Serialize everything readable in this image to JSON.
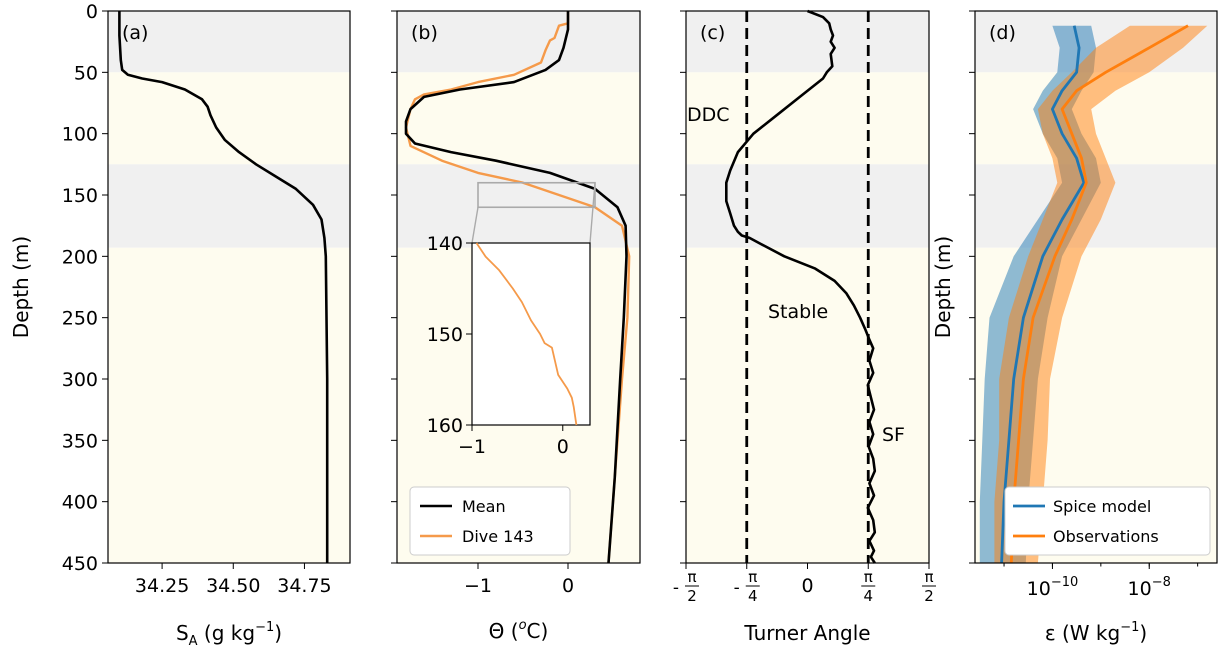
{
  "figure": {
    "colors": {
      "band_grey": "#f0f0f0",
      "band_cream": "#fefcef",
      "black": "#000000",
      "orange": "#ff7f0e",
      "orange_light": "#f59a4a",
      "blue": "#1f77b4"
    }
  },
  "chart_data": [
    {
      "panel": "(a)",
      "type": "line",
      "xlabel": "S",
      "xlabel_sub": "A",
      "xlabel_unit": " (g kg",
      "xlabel_exp": "−1",
      "xlabel_close": ")",
      "ylabel": "Depth (m)",
      "ylim": [
        0,
        450
      ],
      "yticks": [
        "0",
        "50",
        "100",
        "150",
        "200",
        "250",
        "300",
        "350",
        "400",
        "450"
      ],
      "xlim": [
        34.06,
        34.91
      ],
      "xticks": [
        "34.25",
        "34.50",
        "34.75"
      ],
      "series": [
        {
          "x": [
            34.1,
            34.1,
            34.105,
            34.11,
            34.13,
            34.18,
            34.25,
            34.33,
            34.39,
            34.41,
            34.42,
            34.44,
            34.47,
            34.52,
            34.58,
            34.65,
            34.72,
            34.78,
            34.81,
            34.82,
            34.825,
            34.83,
            34.83
          ],
          "y": [
            0,
            20,
            40,
            48,
            52,
            55,
            58,
            64,
            72,
            78,
            85,
            95,
            105,
            115,
            125,
            135,
            145,
            158,
            170,
            185,
            200,
            300,
            450
          ]
        }
      ]
    },
    {
      "panel": "(b)",
      "type": "line",
      "xlabel": "Θ (",
      "xlabel_sup": "o",
      "xlabel_unit": "C)",
      "ylim": [
        0,
        450
      ],
      "xlim": [
        -1.9,
        0.8
      ],
      "xticks": [
        "−1",
        "0"
      ],
      "legend": "bottom-left",
      "series": [
        {
          "name": "Mean",
          "x": [
            0.0,
            0.0,
            -0.05,
            -0.1,
            -0.25,
            -0.6,
            -1.2,
            -1.6,
            -1.75,
            -1.8,
            -1.8,
            -1.7,
            -1.3,
            -0.8,
            -0.2,
            0.3,
            0.55,
            0.64,
            0.65,
            0.62,
            0.58,
            0.52,
            0.45
          ],
          "y": [
            0,
            15,
            30,
            40,
            48,
            58,
            64,
            70,
            80,
            90,
            100,
            108,
            115,
            122,
            132,
            145,
            160,
            175,
            200,
            250,
            300,
            380,
            450
          ]
        },
        {
          "name": "Dive 143",
          "x": [
            0.0,
            0.0,
            -0.1,
            -0.15,
            -0.2,
            -0.25,
            -0.3,
            -0.6,
            -1.0,
            -1.3,
            -1.6,
            -1.7,
            -1.75,
            -1.8,
            -1.75,
            -1.4,
            -1.0,
            -0.5,
            -0.1,
            0.3,
            0.6,
            0.68,
            0.66,
            0.6,
            0.52,
            0.45
          ],
          "y": [
            0,
            10,
            12,
            22,
            24,
            32,
            42,
            52,
            58,
            64,
            68,
            72,
            80,
            95,
            110,
            122,
            132,
            140,
            150,
            160,
            175,
            200,
            250,
            300,
            380,
            450
          ]
        }
      ],
      "inset": {
        "ylim": [
          140,
          160
        ],
        "yticks": [
          "140",
          "150",
          "160"
        ],
        "xlim": [
          -1.0,
          0.3
        ],
        "xticks": [
          "−1",
          "0"
        ],
        "series": [
          {
            "x": [
              -0.95,
              -0.85,
              -0.7,
              -0.55,
              -0.45,
              -0.35,
              -0.25,
              -0.2,
              -0.12,
              -0.05,
              0.05,
              0.1,
              0.12,
              0.15
            ],
            "y": [
              140,
              141.5,
              143,
              145,
              146.5,
              148.5,
              150,
              151,
              151.5,
              154.5,
              156,
              157,
              158,
              160
            ]
          }
        ]
      }
    },
    {
      "panel": "(c)",
      "type": "line",
      "xlabel": "Turner Angle",
      "ylim": [
        0,
        450
      ],
      "xlim": [
        -1.5708,
        1.5708
      ],
      "xtick_labels": [
        "- π/2",
        "- π/4",
        "0",
        "π/4",
        "π/2"
      ],
      "vlines": [
        -0.7854,
        0.7854
      ],
      "annotations": [
        "DDC",
        "Stable",
        "SF"
      ],
      "series": [
        {
          "x": [
            0.0,
            0.2,
            0.28,
            0.3,
            0.33,
            0.3,
            0.35,
            0.3,
            0.32,
            0.25,
            0.2,
            -0.1,
            -0.4,
            -0.7,
            -0.9,
            -1.0,
            -1.05,
            -1.05,
            -1.0,
            -0.95,
            -0.9,
            -0.85,
            -0.75,
            -0.6,
            -0.3,
            0.1,
            0.35,
            0.5,
            0.6,
            0.68,
            0.75,
            0.8,
            0.85,
            0.8,
            0.85,
            0.78,
            0.82,
            0.86,
            0.8,
            0.85,
            0.79,
            0.85,
            0.87,
            0.8,
            0.86,
            0.78,
            0.85,
            0.87,
            0.8,
            0.86,
            0.82,
            0.87
          ],
          "y": [
            0,
            5,
            10,
            15,
            20,
            25,
            30,
            35,
            45,
            50,
            55,
            70,
            85,
            100,
            115,
            130,
            140,
            155,
            165,
            175,
            180,
            183,
            185,
            190,
            200,
            210,
            220,
            230,
            240,
            250,
            260,
            268,
            275,
            285,
            295,
            305,
            315,
            325,
            335,
            345,
            355,
            365,
            375,
            385,
            395,
            405,
            415,
            425,
            432,
            440,
            445,
            450
          ]
        }
      ]
    },
    {
      "panel": "(d)",
      "type": "area",
      "xlabel": "ε (W kg",
      "xlabel_exp": "−1",
      "xlabel_close": ")",
      "ylabel": "Depth (m)",
      "ylim": [
        0,
        450
      ],
      "xscale": "log",
      "xlim_log10": [
        -11.6,
        -6.6
      ],
      "xticks_log10": [
        -10,
        -8
      ],
      "xtick_base": "10",
      "legend": "bottom-right",
      "series": [
        {
          "name": "Spice model",
          "depth": [
            12,
            30,
            50,
            65,
            80,
            100,
            120,
            140,
            170,
            200,
            250,
            300,
            350,
            400,
            450
          ],
          "log10_center": [
            -9.55,
            -9.45,
            -9.5,
            -9.8,
            -10.0,
            -9.8,
            -9.5,
            -9.35,
            -9.8,
            -10.2,
            -10.6,
            -10.8,
            -10.9,
            -11.0,
            -11.05
          ],
          "log10_low": [
            -10.0,
            -9.85,
            -9.9,
            -10.2,
            -10.4,
            -10.2,
            -9.9,
            -9.8,
            -10.3,
            -10.8,
            -11.3,
            -11.4,
            -11.45,
            -11.5,
            -11.5
          ],
          "log10_high": [
            -9.2,
            -9.1,
            -9.15,
            -9.4,
            -9.6,
            -9.4,
            -9.1,
            -9.0,
            -9.4,
            -9.8,
            -10.1,
            -10.3,
            -10.4,
            -10.5,
            -10.55
          ]
        },
        {
          "name": "Observations",
          "depth": [
            12,
            30,
            50,
            65,
            80,
            100,
            120,
            140,
            170,
            200,
            250,
            300,
            350,
            400,
            450
          ],
          "log10_center": [
            -7.2,
            -8.0,
            -8.9,
            -9.5,
            -9.8,
            -9.6,
            -9.4,
            -9.3,
            -9.6,
            -9.95,
            -10.4,
            -10.6,
            -10.7,
            -10.8,
            -10.85
          ],
          "log10_low": [
            -8.4,
            -9.1,
            -9.6,
            -10.0,
            -10.3,
            -10.2,
            -10.0,
            -9.9,
            -10.2,
            -10.5,
            -10.9,
            -11.1,
            -11.1,
            -11.2,
            -11.2
          ],
          "log10_high": [
            -6.8,
            -7.3,
            -8.0,
            -8.7,
            -9.2,
            -9.1,
            -8.9,
            -8.7,
            -9.0,
            -9.4,
            -9.8,
            -10.05,
            -10.1,
            -10.2,
            -10.3
          ]
        }
      ]
    }
  ]
}
